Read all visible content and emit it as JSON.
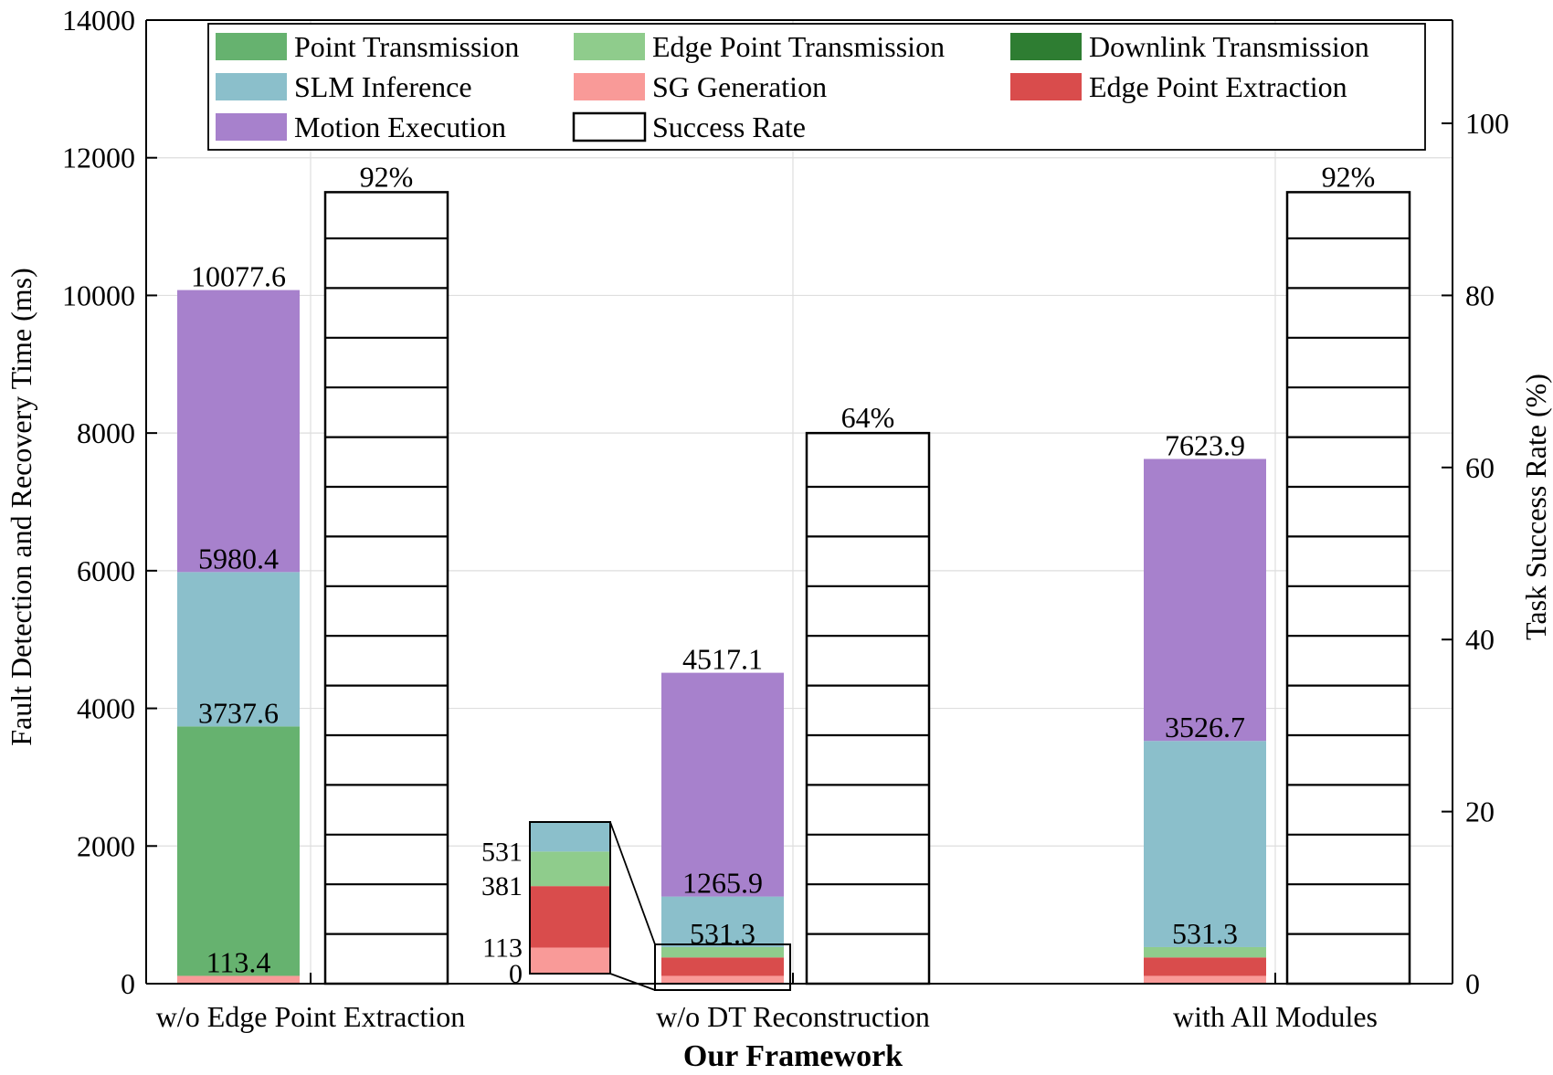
{
  "chart_data": {
    "type": "bar",
    "title": "",
    "xlabel": "Our Framework",
    "ylabel": "Fault Detection and Recovery Time (ms)",
    "ylabel_right": "Task Success Rate (%)",
    "ylim": [
      0,
      14000
    ],
    "ylim_right": [
      0,
      112
    ],
    "yticks": [
      "0",
      "2000",
      "4000",
      "6000",
      "8000",
      "10000",
      "12000",
      "14000"
    ],
    "yticks_right": [
      "0",
      "20",
      "40",
      "60",
      "80",
      "100"
    ],
    "grid": true,
    "legend_position": "top",
    "categories": [
      "w/o Edge Point Extraction",
      "w/o DT Reconstruction",
      "with All Modules"
    ],
    "series": [
      {
        "name": "SG Generation",
        "color": "#f99a98",
        "values": [
          113.4,
          113.4,
          113.4
        ]
      },
      {
        "name": "Edge Point Extraction",
        "color": "#d94c4c",
        "values": [
          0,
          267.6,
          267.6
        ]
      },
      {
        "name": "Edge Point Transmission",
        "color": "#8fcc8c",
        "values": [
          0,
          150.3,
          150.3
        ]
      },
      {
        "name": "Point Transmission",
        "color": "#66b26f",
        "values": [
          3624.2,
          0,
          0
        ]
      },
      {
        "name": "Downlink Transmission",
        "color": "#2e7d32",
        "values": [
          0,
          0,
          0
        ]
      },
      {
        "name": "SLM Inference",
        "color": "#8bbfcb",
        "values": [
          2242.8,
          734.6,
          2995.4
        ]
      },
      {
        "name": "Motion Execution",
        "color": "#a781cc",
        "values": [
          4097.2,
          3251.2,
          4097.2
        ]
      }
    ],
    "success_rate": {
      "name": "Success Rate",
      "values": [
        92,
        64,
        92
      ],
      "labels": [
        "92%",
        "64%",
        "92%"
      ]
    },
    "data_labels": [
      [
        "113.4",
        "3737.6",
        "5980.4",
        "10077.6"
      ],
      [
        "531.3",
        "1265.9",
        "4517.1"
      ],
      [
        "531.3",
        "3526.7",
        "7623.9"
      ]
    ],
    "data_label_values": [
      [
        113.4,
        3737.6,
        5980.4,
        10077.6
      ],
      [
        531.3,
        1265.9,
        4517.1
      ],
      [
        531.3,
        3526.7,
        7623.9
      ]
    ],
    "legend": [
      {
        "name": "Point Transmission",
        "color": "#66b26f",
        "hollow": false
      },
      {
        "name": "Edge Point Transmission",
        "color": "#8fcc8c",
        "hollow": false
      },
      {
        "name": "Downlink Transmission",
        "color": "#2e7d32",
        "hollow": false
      },
      {
        "name": "SLM Inference",
        "color": "#8bbfcb",
        "hollow": false
      },
      {
        "name": "SG Generation",
        "color": "#f99a98",
        "hollow": false
      },
      {
        "name": "Edge Point Extraction",
        "color": "#d94c4c",
        "hollow": false
      },
      {
        "name": "Motion Execution",
        "color": "#a781cc",
        "hollow": false
      },
      {
        "name": "Success Rate",
        "color": "#ffffff",
        "hollow": true
      }
    ],
    "inset": {
      "category_index": 1,
      "tick_labels": [
        "0",
        "113",
        "381",
        "531"
      ],
      "tick_values": [
        0,
        113,
        381,
        531
      ],
      "segments": [
        {
          "name": "SG Generation",
          "from": 0,
          "to": 113.4,
          "color": "#f99a98"
        },
        {
          "name": "Edge Point Extraction",
          "from": 113.4,
          "to": 381,
          "color": "#d94c4c"
        },
        {
          "name": "Edge Point Transmission",
          "from": 381,
          "to": 531.3,
          "color": "#8fcc8c"
        },
        {
          "name": "SLM Inference",
          "from": 531.3,
          "to": 660,
          "color": "#8bbfcb"
        }
      ],
      "range": [
        0,
        660
      ]
    }
  }
}
